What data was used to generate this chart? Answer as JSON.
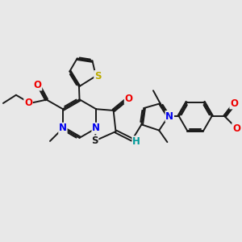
{
  "bg_color": "#e8e8e8",
  "bond_color": "#1a1a1a",
  "bond_width": 1.4,
  "atom_colors": {
    "N": "#0000ee",
    "O": "#ee0000",
    "S_yellow": "#bbaa00",
    "S_black": "#1a1a1a",
    "H": "#009999",
    "C": "#1a1a1a"
  },
  "font_size": 8.5,
  "font_size_small": 7.0
}
